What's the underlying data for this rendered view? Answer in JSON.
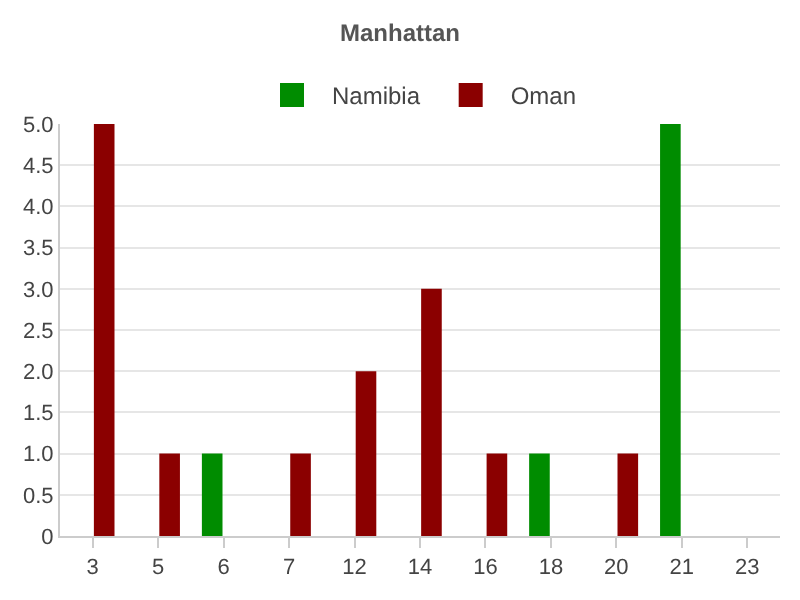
{
  "chart_data": {
    "type": "bar",
    "title": "Manhattan",
    "categories": [
      "3",
      "5",
      "6",
      "7",
      "12",
      "14",
      "16",
      "18",
      "20",
      "21",
      "23"
    ],
    "series": [
      {
        "name": "Namibia",
        "color": "#008c00",
        "values": [
          null,
          null,
          1,
          null,
          null,
          null,
          null,
          1,
          null,
          5,
          null
        ]
      },
      {
        "name": "Oman",
        "color": "#8b0000",
        "values": [
          5,
          1,
          null,
          1,
          2,
          3,
          1,
          null,
          1,
          null,
          null
        ]
      }
    ],
    "ylim": [
      0,
      5
    ],
    "yticks": [
      {
        "value": 0,
        "label": "0"
      },
      0.5,
      {
        "value": 1,
        "label": "1.0"
      },
      1.5,
      {
        "value": 2,
        "label": "2.0"
      },
      2.5,
      {
        "value": 3,
        "label": "3.0"
      },
      3.5,
      {
        "value": 4,
        "label": "4.0"
      },
      4.5,
      {
        "value": 5,
        "label": "5.0"
      }
    ],
    "grid": "y",
    "legend": "top"
  }
}
